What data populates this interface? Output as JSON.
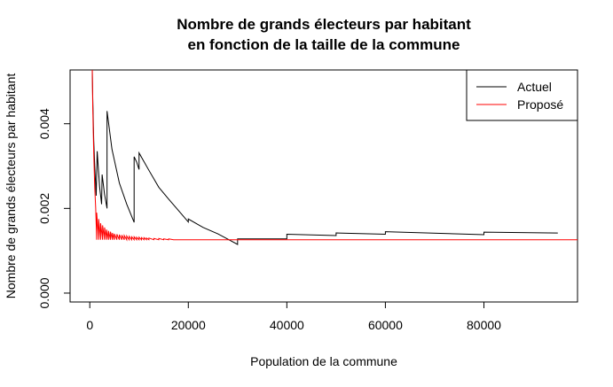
{
  "chart_data": {
    "type": "line",
    "title": "Nombre de grands électeurs par habitant",
    "subtitle": "en fonction de la taille de la commune",
    "xlabel": "Population de la commune",
    "ylabel": "Nombre de grands électeurs par habitant",
    "xlim": [
      -4000,
      99000
    ],
    "ylim": [
      -0.00021,
      0.00527
    ],
    "x_ticks": [
      0,
      20000,
      40000,
      60000,
      80000
    ],
    "x_tick_labels": [
      "0",
      "20000",
      "40000",
      "60000",
      "80000"
    ],
    "y_ticks": [
      0.0,
      0.002,
      0.004
    ],
    "y_tick_labels": [
      "0.000",
      "0.002",
      "0.004"
    ],
    "grid": false,
    "legend": {
      "placement": "top-right",
      "entries": [
        "Actuel",
        "Proposé"
      ]
    },
    "series": [
      {
        "name": "Actuel",
        "color": "#000000",
        "points": [
          [
            500,
            0.0053
          ],
          [
            600,
            0.0046
          ],
          [
            800,
            0.0036
          ],
          [
            1000,
            0.003
          ],
          [
            1300,
            0.0023
          ],
          [
            1500,
            0.00335
          ],
          [
            2000,
            0.0025
          ],
          [
            2400,
            0.0021
          ],
          [
            2500,
            0.0028
          ],
          [
            3000,
            0.00233
          ],
          [
            3500,
            0.002
          ],
          [
            3500,
            0.0043
          ],
          [
            4500,
            0.0034
          ],
          [
            6000,
            0.0026
          ],
          [
            7500,
            0.0021
          ],
          [
            9000,
            0.00167
          ],
          [
            9000,
            0.00322
          ],
          [
            9500,
            0.0031
          ],
          [
            10000,
            0.00292
          ],
          [
            10000,
            0.00331
          ],
          [
            12000,
            0.0029
          ],
          [
            14000,
            0.0025
          ],
          [
            16000,
            0.00222
          ],
          [
            18000,
            0.00195
          ],
          [
            20000,
            0.00168
          ],
          [
            20000,
            0.00175
          ],
          [
            23000,
            0.00155
          ],
          [
            26000,
            0.0014
          ],
          [
            30000,
            0.00115
          ],
          [
            30000,
            0.00128
          ],
          [
            40000,
            0.00128
          ],
          [
            40000,
            0.00139
          ],
          [
            50000,
            0.00136
          ],
          [
            50000,
            0.00142
          ],
          [
            60000,
            0.00139
          ],
          [
            60000,
            0.00145
          ],
          [
            80000,
            0.00138
          ],
          [
            80000,
            0.00144
          ],
          [
            95000,
            0.00142
          ]
        ]
      },
      {
        "name": "Proposé",
        "color": "#ff0000",
        "points": [
          [
            500,
            0.0053
          ],
          [
            600,
            0.0044
          ],
          [
            800,
            0.0033
          ],
          [
            1000,
            0.0025
          ],
          [
            1200,
            0.002
          ],
          [
            1400,
            0.00126
          ],
          [
            1400,
            0.0019
          ],
          [
            1800,
            0.00126
          ],
          [
            1800,
            0.00175
          ],
          [
            2200,
            0.00126
          ],
          [
            2200,
            0.00165
          ],
          [
            2600,
            0.00126
          ],
          [
            2600,
            0.0016
          ],
          [
            3000,
            0.00126
          ],
          [
            3000,
            0.00155
          ],
          [
            3400,
            0.00126
          ],
          [
            3400,
            0.0015
          ],
          [
            3800,
            0.00126
          ],
          [
            3800,
            0.00147
          ],
          [
            4200,
            0.00126
          ],
          [
            4200,
            0.00145
          ],
          [
            4600,
            0.00126
          ],
          [
            4600,
            0.00142
          ],
          [
            5000,
            0.00126
          ],
          [
            5000,
            0.0014
          ],
          [
            5500,
            0.00126
          ],
          [
            5500,
            0.00139
          ],
          [
            6000,
            0.00126
          ],
          [
            6000,
            0.00138
          ],
          [
            6500,
            0.00126
          ],
          [
            6500,
            0.00137
          ],
          [
            7000,
            0.00126
          ],
          [
            7000,
            0.00136
          ],
          [
            7500,
            0.00126
          ],
          [
            7500,
            0.00135
          ],
          [
            8000,
            0.00126
          ],
          [
            8000,
            0.00134
          ],
          [
            8500,
            0.00126
          ],
          [
            8500,
            0.00133
          ],
          [
            9000,
            0.00126
          ],
          [
            9000,
            0.00133
          ],
          [
            9500,
            0.00126
          ],
          [
            9500,
            0.00132
          ],
          [
            10000,
            0.00126
          ],
          [
            10000,
            0.00132
          ],
          [
            10500,
            0.00126
          ],
          [
            10500,
            0.00131
          ],
          [
            11000,
            0.00126
          ],
          [
            11000,
            0.00131
          ],
          [
            11500,
            0.00126
          ],
          [
            11500,
            0.0013
          ],
          [
            12000,
            0.00126
          ],
          [
            12000,
            0.0013
          ],
          [
            13000,
            0.00126
          ],
          [
            13000,
            0.00129
          ],
          [
            14000,
            0.00126
          ],
          [
            14000,
            0.00129
          ],
          [
            15000,
            0.00126
          ],
          [
            15000,
            0.00128
          ],
          [
            16000,
            0.00126
          ],
          [
            16000,
            0.00128
          ],
          [
            17000,
            0.00126
          ],
          [
            100000,
            0.00126
          ]
        ]
      }
    ]
  }
}
